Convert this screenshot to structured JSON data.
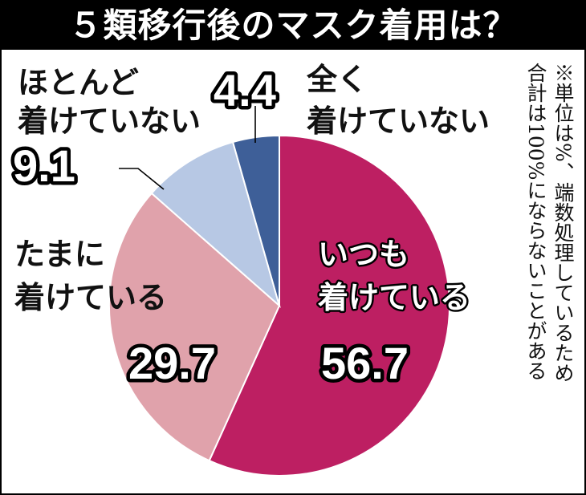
{
  "title": "５類移行後のマスク着用は？",
  "note": [
    "※単位は%、端数処理しているため",
    "合計は100%にならないことがある"
  ],
  "colors": {
    "always": "#bd1f62",
    "sometimes": "#e0a2ab",
    "mostly_not": "#b7c8e4",
    "never": "#3e5f98"
  },
  "chart_data": {
    "type": "pie",
    "unit": "%",
    "slices": [
      {
        "label_lines": [
          "いつも",
          "着けている"
        ],
        "value": 56.7,
        "value_label": "56.7",
        "color_key": "always"
      },
      {
        "label_lines": [
          "たまに",
          "着けている"
        ],
        "value": 29.7,
        "value_label": "29.7",
        "color_key": "sometimes"
      },
      {
        "label_lines": [
          "ほとんど",
          "着けていない"
        ],
        "value": 9.1,
        "value_label": "9.1",
        "color_key": "mostly_not"
      },
      {
        "label_lines": [
          "全く",
          "着けていない"
        ],
        "value": 4.4,
        "value_label": "4.4",
        "color_key": "never"
      }
    ]
  }
}
